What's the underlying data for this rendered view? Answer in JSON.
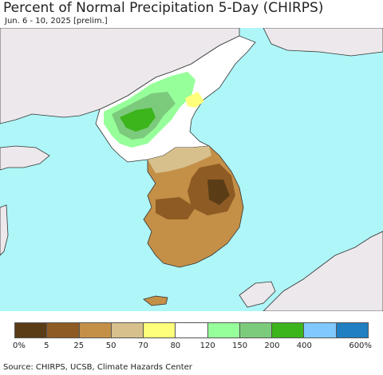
{
  "title": "Percent of Normal Precipitation 5-Day (CHIRPS)",
  "subtitle": "Jun. 6 - 10, 2025 [prelim.]",
  "source": "Source: CHIRPS, UCSB, Climate Hazards Center",
  "colors": {
    "ocean": "#aff6f8",
    "land_outside": "#ece8ec",
    "border": "#333333"
  },
  "legend": {
    "swatches": [
      "#5a3d16",
      "#8f5b24",
      "#c49048",
      "#d7c08c",
      "#feff7a",
      "#ffffff",
      "#96ff9a",
      "#7ccb7c",
      "#3cb41c",
      "#7fc9ff",
      "#1f7fc0"
    ],
    "ticks": [
      "0%",
      "5",
      "25",
      "50",
      "70",
      "80",
      "120",
      "150",
      "200",
      "400",
      "600%"
    ]
  }
}
